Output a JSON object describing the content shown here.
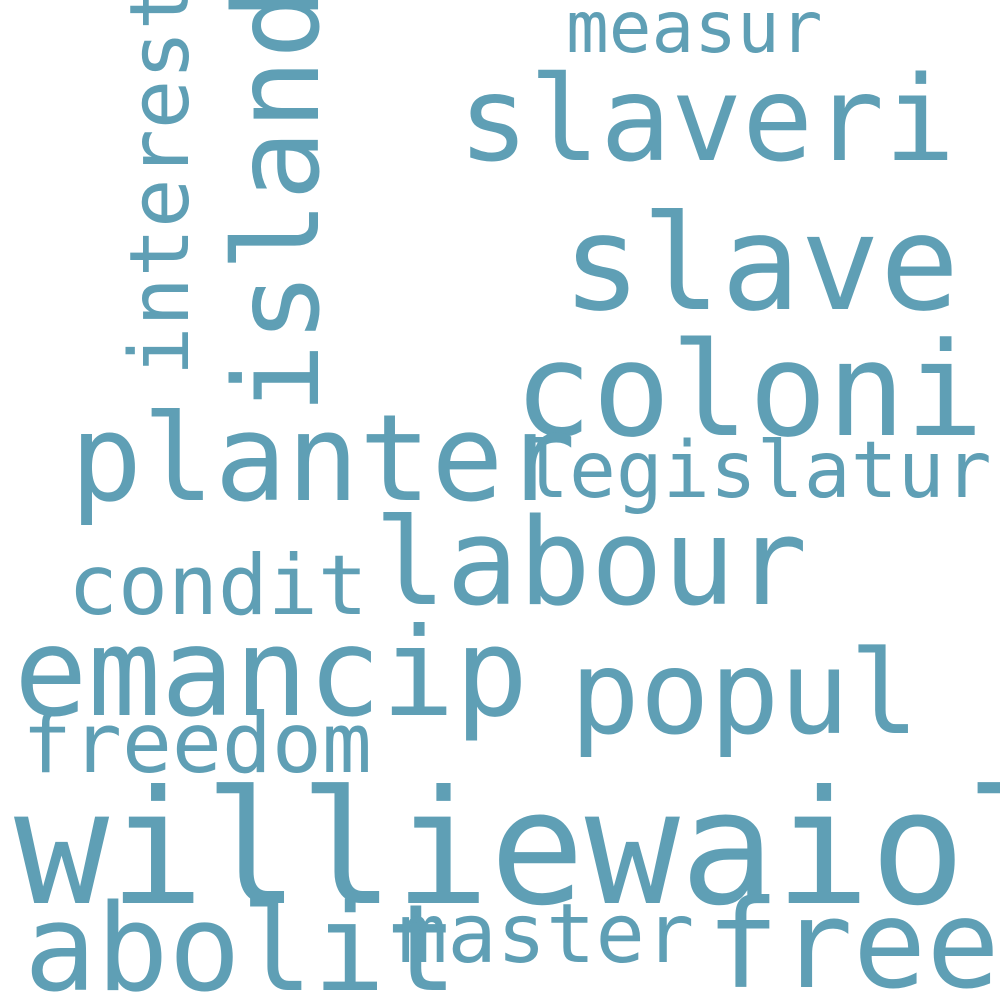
{
  "colors": {
    "background": "#ffffff",
    "word": "#5f9fb5"
  },
  "words": {
    "measur": "measur",
    "slaveri": "slaveri",
    "slave": "slave",
    "coloni": "coloni",
    "island": "island",
    "interest": "interest",
    "planter": "planter",
    "legislatur": "legislatur",
    "labour": "labour",
    "condit": "condit",
    "emancip": "emancip",
    "popul": "popul",
    "freedom": "freedom",
    "williewaiola": "williewaiola",
    "abolit": "abolit",
    "master": "master",
    "free": "free"
  }
}
